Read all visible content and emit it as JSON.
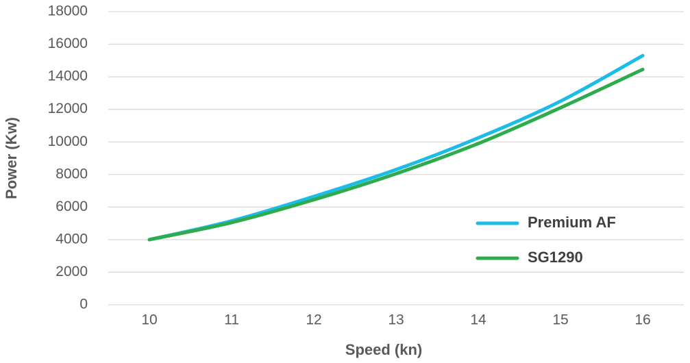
{
  "chart_data": {
    "type": "line",
    "x_label": "Speed (kn)",
    "y_label": "Power (Kw)",
    "categories": [
      "10",
      "11",
      "12",
      "13",
      "14",
      "15",
      "16"
    ],
    "series": [
      {
        "name": "Premium AF",
        "color": "#1bbde6",
        "values": [
          4000,
          5150,
          6650,
          8300,
          10250,
          12500,
          15300
        ]
      },
      {
        "name": "SG1290",
        "color": "#2eab4c",
        "values": [
          4000,
          5050,
          6450,
          8050,
          9900,
          12100,
          14450
        ]
      }
    ],
    "ylim": [
      0,
      18000
    ],
    "yticks": [
      0,
      2000,
      4000,
      6000,
      8000,
      10000,
      12000,
      14000,
      16000,
      18000
    ],
    "grid": true,
    "legend_position": "right"
  }
}
